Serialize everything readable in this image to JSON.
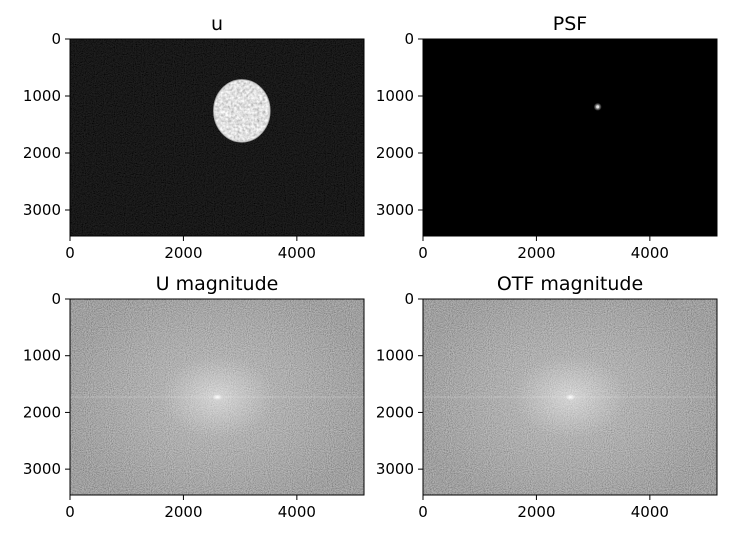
{
  "chart_data": [
    {
      "type": "heatmap",
      "title": "u",
      "colormap": "gray",
      "xlim": [
        0,
        5184
      ],
      "ylim": [
        3456,
        0
      ],
      "xticks": [
        "0",
        "2000",
        "4000"
      ],
      "yticks": [
        "0",
        "1000",
        "2000",
        "3000"
      ],
      "content": "dark image with a bright textured disc centered near x≈3000, y≈1250"
    },
    {
      "type": "heatmap",
      "title": "PSF",
      "colormap": "gray",
      "xlim": [
        0,
        5184
      ],
      "ylim": [
        3456,
        0
      ],
      "xticks": [
        "0",
        "2000",
        "4000"
      ],
      "yticks": [
        "0",
        "1000",
        "2000",
        "3000"
      ],
      "content": "black field with a single small bright spot near x≈3080, y≈1190"
    },
    {
      "type": "heatmap",
      "title": "U magnitude",
      "colormap": "gray",
      "xlim": [
        0,
        5184
      ],
      "ylim": [
        3456,
        0
      ],
      "xticks": [
        "0",
        "2000",
        "4000"
      ],
      "yticks": [
        "0",
        "1000",
        "2000",
        "3000"
      ],
      "content": "noisy gray spectrum with brighter center near x≈2600, y≈1730"
    },
    {
      "type": "heatmap",
      "title": "OTF magnitude",
      "colormap": "gray",
      "xlim": [
        0,
        5184
      ],
      "ylim": [
        3456,
        0
      ],
      "xticks": [
        "0",
        "2000",
        "4000"
      ],
      "yticks": [
        "0",
        "1000",
        "2000",
        "3000"
      ],
      "content": "noisy gray spectrum with brighter center near x≈2600, y≈1730"
    }
  ]
}
